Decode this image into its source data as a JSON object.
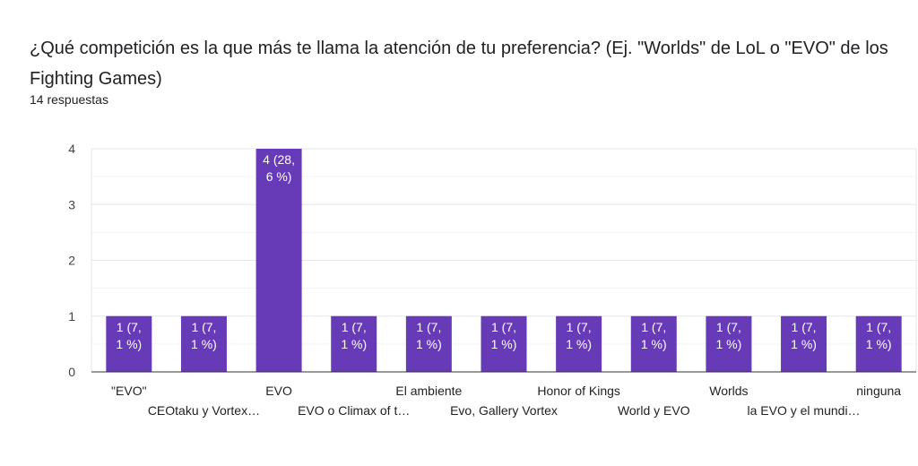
{
  "header": {
    "title": "¿Qué competición es la que más te llama la atención de tu preferencia? (Ej. \"Worlds\" de LoL o \"EVO\" de los Fighting Games)",
    "responses": "14 respuestas"
  },
  "colors": {
    "bar": "#673ab7"
  },
  "chart_data": {
    "type": "bar",
    "title": "¿Qué competición es la que más te llama la atención de tu preferencia? (Ej. \"Worlds\" de LoL o \"EVO\" de los Fighting Games)",
    "xlabel": "",
    "ylabel": "",
    "ylim": [
      0,
      4
    ],
    "yticks": [
      "0",
      "1",
      "2",
      "3",
      "4"
    ],
    "grid": true,
    "categories": [
      "\"EVO\"",
      "CEOtaku y Vortex…",
      "EVO",
      "EVO o Climax of t…",
      "El ambiente",
      "Evo, Gallery Vortex",
      "Honor of Kings",
      "World y EVO",
      "Worlds",
      "la EVO y el mundi…",
      "ninguna"
    ],
    "values": [
      1,
      1,
      4,
      1,
      1,
      1,
      1,
      1,
      1,
      1,
      1
    ],
    "data_labels": [
      [
        "1 (7,",
        "1 %)"
      ],
      [
        "1 (7,",
        "1 %)"
      ],
      [
        "4 (28,",
        "6 %)"
      ],
      [
        "1 (7,",
        "1 %)"
      ],
      [
        "1 (7,",
        "1 %)"
      ],
      [
        "1 (7,",
        "1 %)"
      ],
      [
        "1 (7,",
        "1 %)"
      ],
      [
        "1 (7,",
        "1 %)"
      ],
      [
        "1 (7,",
        "1 %)"
      ],
      [
        "1 (7,",
        "1 %)"
      ],
      [
        "1 (7,",
        "1 %)"
      ]
    ]
  }
}
